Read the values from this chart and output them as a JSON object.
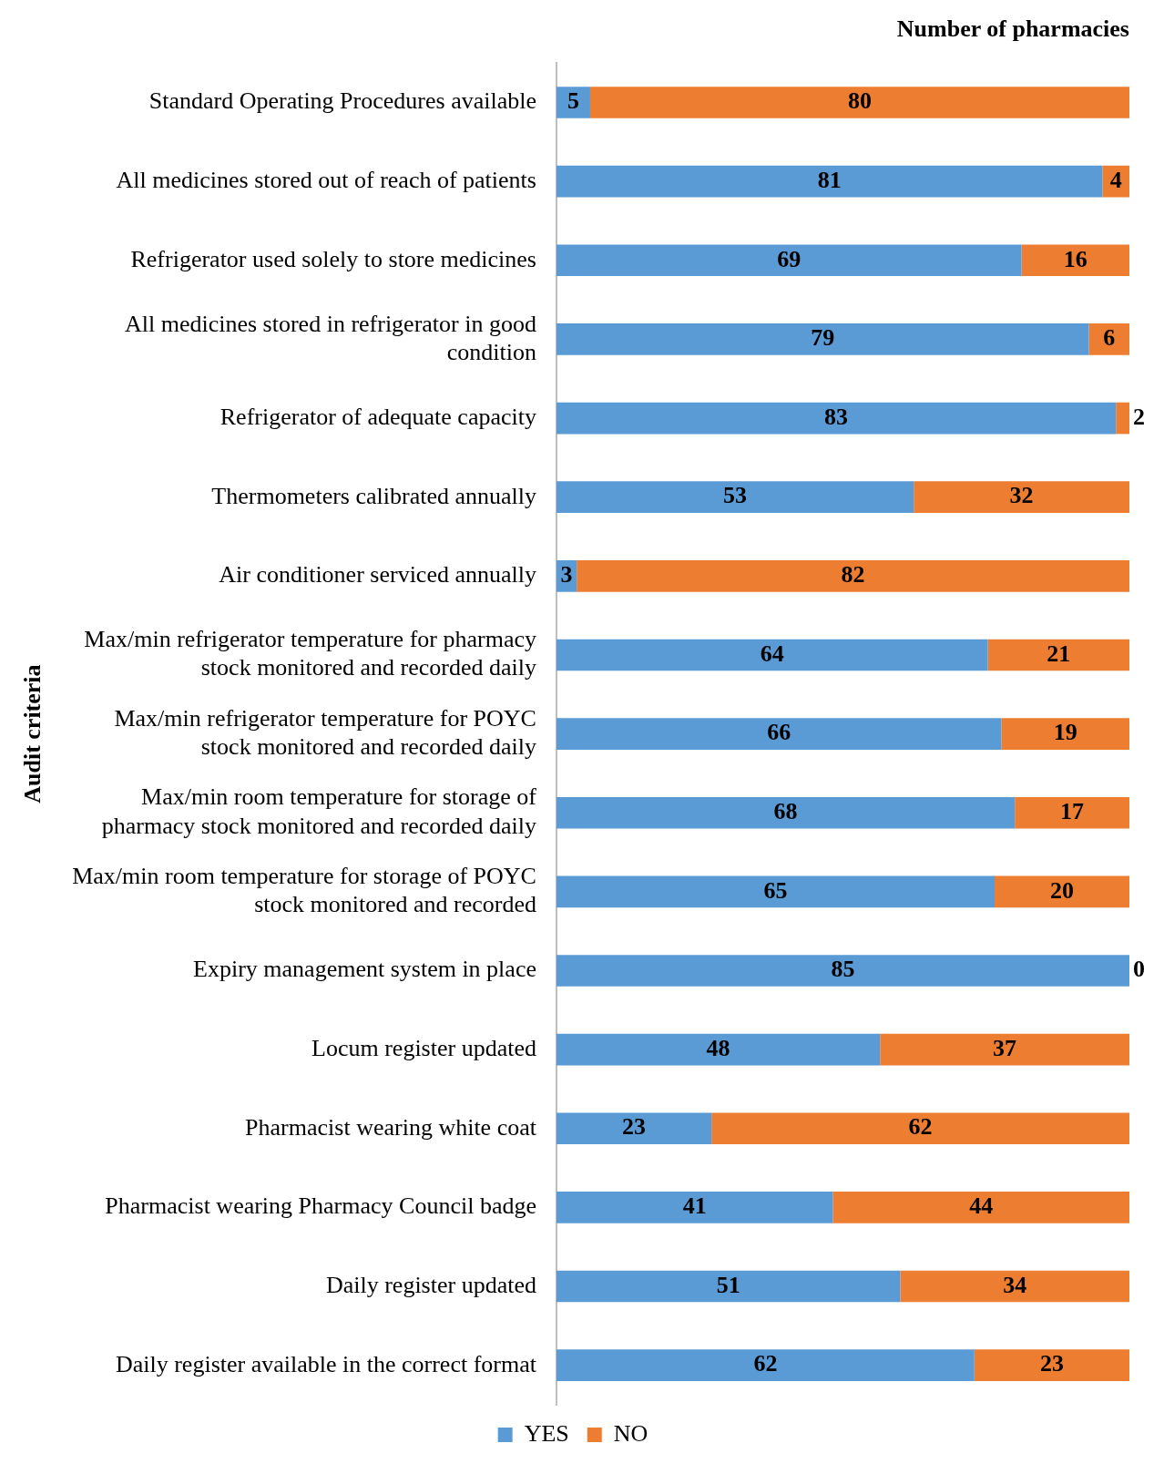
{
  "chart_data": {
    "type": "bar",
    "orientation": "horizontal",
    "stacked": true,
    "title": "Number of pharmacies",
    "ylabel": "Audit criteria",
    "categories": [
      "Standard Operating Procedures available",
      "All medicines stored out of reach of patients",
      "Refrigerator used solely to store medicines",
      "All medicines stored in refrigerator in good condition",
      "Refrigerator of adequate capacity",
      "Thermometers calibrated annually",
      "Air conditioner serviced annually",
      "Max/min refrigerator temperature for pharmacy stock monitored and recorded daily",
      "Max/min refrigerator temperature for POYC stock monitored and recorded daily",
      "Max/min room temperature for storage of pharmacy stock monitored and recorded daily",
      "Max/min room temperature for storage of POYC stock monitored and recorded",
      "Expiry management system in place",
      "Locum register updated",
      "Pharmacist wearing white coat",
      "Pharmacist wearing Pharmacy Council badge",
      "Daily register updated",
      "Daily register available in the correct format"
    ],
    "series": [
      {
        "name": "YES",
        "color": "#5b9bd5",
        "values": [
          5,
          81,
          69,
          79,
          83,
          53,
          3,
          64,
          66,
          68,
          65,
          85,
          48,
          23,
          41,
          51,
          62
        ]
      },
      {
        "name": "NO",
        "color": "#ed7d31",
        "values": [
          80,
          4,
          16,
          6,
          2,
          32,
          82,
          21,
          19,
          17,
          20,
          0,
          37,
          62,
          44,
          34,
          23
        ]
      }
    ],
    "xlim": [
      0,
      85
    ],
    "tick_labels": "y",
    "data_labels": true,
    "legend": "bottom"
  }
}
